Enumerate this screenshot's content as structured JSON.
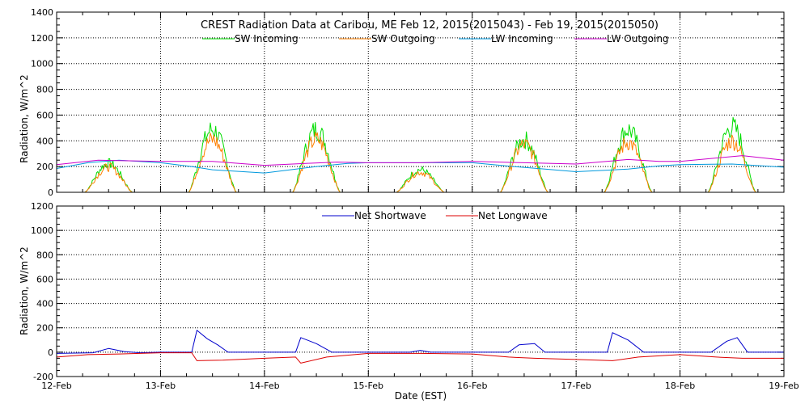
{
  "chart_data": [
    {
      "type": "line",
      "title": "CREST Radiation Data at Caribou, ME   Feb 12, 2015(2015043) - Feb 19, 2015(2015050)",
      "xlabel": "",
      "ylabel": "Radiation, W/m^2",
      "xlim": [
        "12-Feb",
        "19-Feb"
      ],
      "ylim": [
        0,
        1400
      ],
      "yticks": [
        0,
        200,
        400,
        600,
        800,
        1000,
        1200,
        1400
      ],
      "xticks": [
        "12-Feb",
        "13-Feb",
        "14-Feb",
        "15-Feb",
        "16-Feb",
        "17-Feb",
        "18-Feb",
        "19-Feb"
      ],
      "grid": true,
      "legend": "top",
      "series": [
        {
          "name": "SW Incoming",
          "color": "#00dd00",
          "peaks": [
            230,
            500,
            500,
            180,
            420,
            500,
            520
          ]
        },
        {
          "name": "SW Outgoing",
          "color": "#ff7f00",
          "peaks": [
            200,
            420,
            420,
            160,
            380,
            400,
            410
          ]
        },
        {
          "name": "LW Incoming",
          "color": "#0099dd",
          "points": [
            [
              0.0,
              185
            ],
            [
              0.3,
              230
            ],
            [
              0.6,
              250
            ],
            [
              1.0,
              230
            ],
            [
              1.3,
              200
            ],
            [
              1.5,
              175
            ],
            [
              2.0,
              150
            ],
            [
              2.5,
              200
            ],
            [
              2.8,
              225
            ],
            [
              3.0,
              230
            ],
            [
              3.5,
              230
            ],
            [
              4.0,
              230
            ],
            [
              4.4,
              200
            ],
            [
              4.7,
              180
            ],
            [
              5.0,
              160
            ],
            [
              5.5,
              180
            ],
            [
              5.8,
              205
            ],
            [
              6.0,
              215
            ],
            [
              6.5,
              220
            ],
            [
              7.0,
              195
            ]
          ]
        },
        {
          "name": "LW Outgoing",
          "color": "#cc00cc",
          "points": [
            [
              0.0,
              215
            ],
            [
              0.4,
              250
            ],
            [
              1.0,
              240
            ],
            [
              1.5,
              240
            ],
            [
              2.0,
              210
            ],
            [
              2.4,
              225
            ],
            [
              2.7,
              235
            ],
            [
              3.0,
              230
            ],
            [
              3.5,
              230
            ],
            [
              4.0,
              240
            ],
            [
              4.5,
              230
            ],
            [
              5.0,
              220
            ],
            [
              5.5,
              255
            ],
            [
              5.8,
              240
            ],
            [
              6.0,
              240
            ],
            [
              6.6,
              285
            ],
            [
              7.0,
              250
            ]
          ]
        }
      ]
    },
    {
      "type": "line",
      "title": "",
      "xlabel": "Date (EST)",
      "ylabel": "Radiation, W/m^2",
      "xlim": [
        "12-Feb",
        "19-Feb"
      ],
      "ylim": [
        -200,
        1200
      ],
      "yticks": [
        -200,
        0,
        200,
        400,
        600,
        800,
        1000,
        1200
      ],
      "xticks": [
        "12-Feb",
        "13-Feb",
        "14-Feb",
        "15-Feb",
        "16-Feb",
        "17-Feb",
        "18-Feb",
        "19-Feb"
      ],
      "grid": true,
      "legend": "top",
      "series": [
        {
          "name": "Net Shortwave",
          "color": "#0000cc",
          "points": [
            [
              0.0,
              -10
            ],
            [
              0.35,
              -5
            ],
            [
              0.5,
              30
            ],
            [
              0.65,
              5
            ],
            [
              0.8,
              -5
            ],
            [
              1.0,
              0
            ],
            [
              1.3,
              0
            ],
            [
              1.35,
              180
            ],
            [
              1.45,
              110
            ],
            [
              1.55,
              60
            ],
            [
              1.65,
              0
            ],
            [
              2.0,
              0
            ],
            [
              2.3,
              0
            ],
            [
              2.35,
              120
            ],
            [
              2.5,
              70
            ],
            [
              2.65,
              0
            ],
            [
              3.0,
              0
            ],
            [
              3.4,
              0
            ],
            [
              3.5,
              15
            ],
            [
              3.6,
              0
            ],
            [
              4.0,
              0
            ],
            [
              4.35,
              0
            ],
            [
              4.45,
              60
            ],
            [
              4.6,
              70
            ],
            [
              4.7,
              0
            ],
            [
              5.0,
              0
            ],
            [
              5.3,
              0
            ],
            [
              5.35,
              160
            ],
            [
              5.5,
              100
            ],
            [
              5.65,
              0
            ],
            [
              6.0,
              0
            ],
            [
              6.3,
              0
            ],
            [
              6.45,
              90
            ],
            [
              6.55,
              120
            ],
            [
              6.65,
              0
            ],
            [
              7.0,
              0
            ]
          ]
        },
        {
          "name": "Net Longwave",
          "color": "#dd0000",
          "points": [
            [
              0.0,
              -40
            ],
            [
              0.3,
              -20
            ],
            [
              0.6,
              -15
            ],
            [
              1.0,
              -5
            ],
            [
              1.3,
              -5
            ],
            [
              1.35,
              -70
            ],
            [
              1.6,
              -65
            ],
            [
              2.0,
              -50
            ],
            [
              2.3,
              -40
            ],
            [
              2.35,
              -90
            ],
            [
              2.6,
              -40
            ],
            [
              3.0,
              -10
            ],
            [
              3.5,
              -10
            ],
            [
              4.0,
              -15
            ],
            [
              4.35,
              -40
            ],
            [
              4.6,
              -50
            ],
            [
              5.0,
              -60
            ],
            [
              5.35,
              -70
            ],
            [
              5.6,
              -40
            ],
            [
              6.0,
              -20
            ],
            [
              6.35,
              -40
            ],
            [
              6.6,
              -50
            ],
            [
              7.0,
              -50
            ]
          ]
        }
      ]
    }
  ]
}
